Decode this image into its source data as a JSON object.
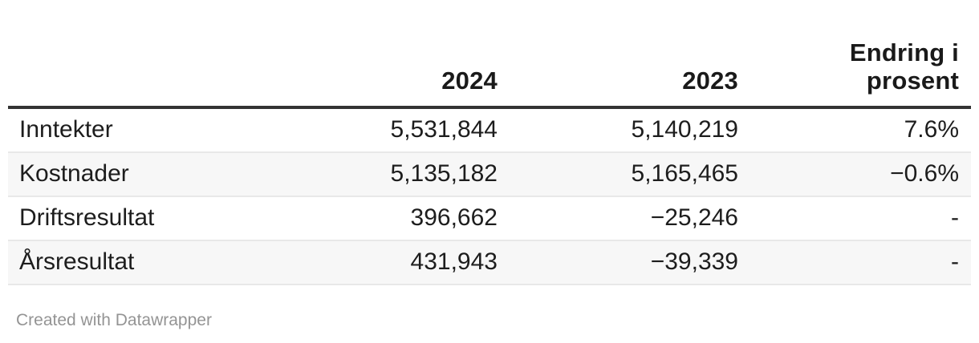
{
  "chart_data": {
    "type": "table",
    "title": "",
    "columns": [
      "",
      "2024",
      "2023",
      "Endring i prosent"
    ],
    "rows": [
      {
        "label": "Inntekter",
        "y2024": 5531844,
        "y2023": 5140219,
        "endring_i_prosent": "7.6%"
      },
      {
        "label": "Kostnader",
        "y2024": 5135182,
        "y2023": 5165465,
        "endring_i_prosent": "-0.6%"
      },
      {
        "label": "Driftsresultat",
        "y2024": 396662,
        "y2023": -25246,
        "endring_i_prosent": null
      },
      {
        "label": "Årsresultat",
        "y2024": 431943,
        "y2023": -39339,
        "endring_i_prosent": null
      }
    ],
    "layout": {
      "zebra_striping": true,
      "numeric_columns_right_aligned": true,
      "header_rule": "thick"
    }
  },
  "table": {
    "header": {
      "col_label": "",
      "col_2024": "2024",
      "col_2023": "2023",
      "col_change_line1": "Endring i",
      "col_change_line2": "prosent"
    },
    "rows": [
      {
        "cells": [
          "Inntekter",
          "5,531,844",
          "5,140,219",
          "7.6%"
        ]
      },
      {
        "cells": [
          "Kostnader",
          "5,135,182",
          "5,165,465",
          "−0.6%"
        ]
      },
      {
        "cells": [
          "Driftsresultat",
          "396,662",
          "−25,246",
          "-"
        ]
      },
      {
        "cells": [
          "Årsresultat",
          "431,943",
          "−39,339",
          "-"
        ]
      }
    ]
  },
  "footer": {
    "credit_text": "Created with Datawrapper"
  },
  "colors": {
    "background": "#ffffff",
    "text": "#1d1d1d",
    "header_text": "#1a1a1a",
    "header_border": "#333333",
    "row_divider": "#e8e8e8",
    "zebra_stripe": "#f7f7f7",
    "footer_text": "#949494"
  }
}
